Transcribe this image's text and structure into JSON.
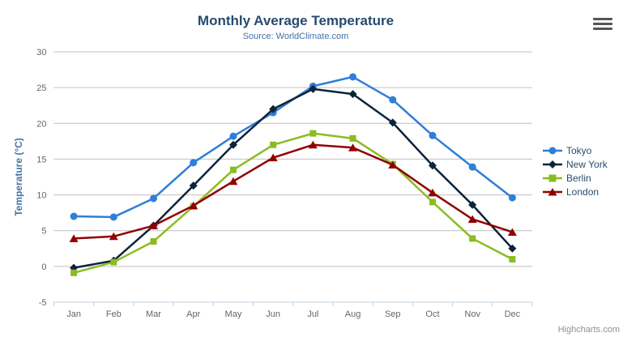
{
  "credits": "Highcharts.com",
  "context_menu_icon": "hamburger-menu",
  "colors": {
    "title": "#274b6d",
    "subtitle": "#4572a7",
    "grid": "#c0c0c0",
    "axis_line": "#c0d0e0",
    "tick_label": "#666666",
    "axis_title": "#4572a7",
    "legend_text": "#274b6d",
    "credits_text": "#909090",
    "burger": "#555555"
  },
  "chart_data": {
    "type": "line",
    "title": "Monthly Average Temperature",
    "subtitle": "Source: WorldClimate.com",
    "xlabel": "",
    "ylabel": "Temperature (°C)",
    "ylim": [
      -5,
      30
    ],
    "yticks": [
      -5,
      0,
      5,
      10,
      15,
      20,
      25,
      30
    ],
    "grid": "horizontal",
    "legend_position": "right",
    "categories": [
      "Jan",
      "Feb",
      "Mar",
      "Apr",
      "May",
      "Jun",
      "Jul",
      "Aug",
      "Sep",
      "Oct",
      "Nov",
      "Dec"
    ],
    "series": [
      {
        "name": "Tokyo",
        "color": "#2f7ed8",
        "marker": "circle",
        "values": [
          7.0,
          6.9,
          9.5,
          14.5,
          18.2,
          21.5,
          25.2,
          26.5,
          23.3,
          18.3,
          13.9,
          9.6
        ]
      },
      {
        "name": "New York",
        "color": "#0d233a",
        "marker": "diamond",
        "values": [
          -0.2,
          0.8,
          5.7,
          11.3,
          17.0,
          22.0,
          24.8,
          24.1,
          20.1,
          14.1,
          8.6,
          2.5
        ]
      },
      {
        "name": "Berlin",
        "color": "#8bbc21",
        "marker": "square",
        "values": [
          -0.9,
          0.6,
          3.5,
          8.4,
          13.5,
          17.0,
          18.6,
          17.9,
          14.3,
          9.0,
          3.9,
          1.0
        ]
      },
      {
        "name": "London",
        "color": "#910000",
        "marker": "triangle",
        "values": [
          3.9,
          4.2,
          5.7,
          8.5,
          11.9,
          15.2,
          17.0,
          16.6,
          14.2,
          10.3,
          6.6,
          4.8
        ]
      }
    ]
  }
}
